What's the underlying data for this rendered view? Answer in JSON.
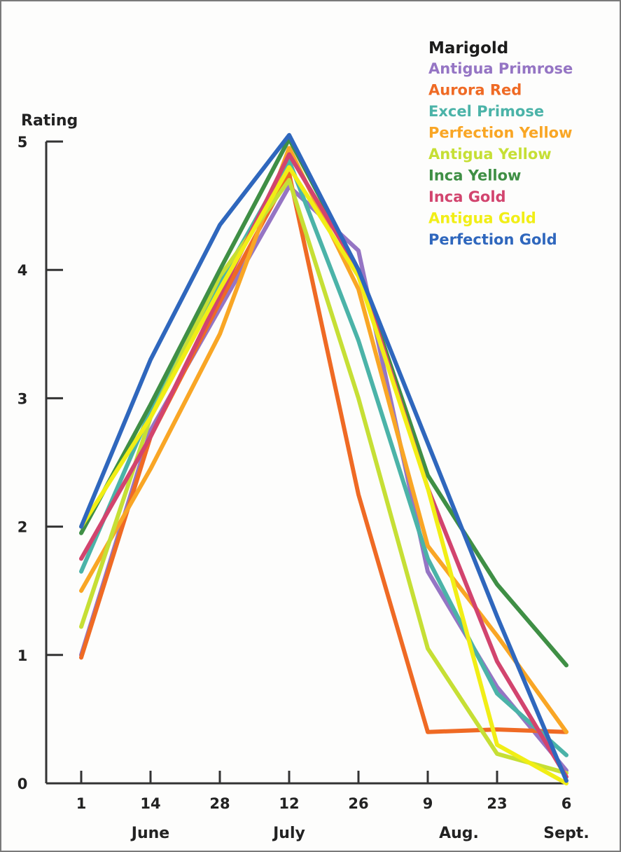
{
  "chart_data": {
    "type": "line",
    "ylabel": "Rating",
    "xlabel": "",
    "ylim": [
      0,
      5
    ],
    "y_ticks": [
      0,
      1,
      2,
      3,
      4,
      5
    ],
    "x_tick_labels": [
      "1",
      "14",
      "28",
      "12",
      "26",
      "9",
      "23",
      "6"
    ],
    "month_labels": [
      {
        "label": "June",
        "at_index": 1
      },
      {
        "label": "July",
        "at_index": 3
      },
      {
        "label": "Aug.",
        "at_index": 5.5
      },
      {
        "label": "Sept.",
        "at_index": 7
      }
    ],
    "legend_title": "Marigold",
    "legend_position": "top-right",
    "grid": false,
    "series": [
      {
        "name": "Antigua Primrose",
        "color": "#9575c4",
        "values": [
          1.0,
          2.75,
          3.7,
          4.65,
          4.15,
          1.65,
          0.75,
          0.1
        ]
      },
      {
        "name": "Aurora Red",
        "color": "#ef6a24",
        "values": [
          0.98,
          2.7,
          3.75,
          4.75,
          2.25,
          0.4,
          0.42,
          0.4
        ]
      },
      {
        "name": "Excel Primose",
        "color": "#4bb3a8",
        "values": [
          1.65,
          2.9,
          3.9,
          4.85,
          3.45,
          1.75,
          0.7,
          0.22
        ]
      },
      {
        "name": "Perfection Yellow",
        "color": "#f9a625",
        "values": [
          1.5,
          2.45,
          3.5,
          4.95,
          3.85,
          1.85,
          1.15,
          0.4
        ]
      },
      {
        "name": "Antigua Yellow",
        "color": "#c6df35",
        "values": [
          1.22,
          2.85,
          3.95,
          4.7,
          3.0,
          1.05,
          0.23,
          0.08
        ]
      },
      {
        "name": "Inca Yellow",
        "color": "#3f8f45",
        "values": [
          1.95,
          2.95,
          4.0,
          5.02,
          4.0,
          2.4,
          1.55,
          0.92
        ]
      },
      {
        "name": "Inca Gold",
        "color": "#d2446e",
        "values": [
          1.75,
          2.7,
          3.8,
          4.9,
          4.0,
          2.3,
          0.95,
          0.05
        ]
      },
      {
        "name": "Antigua Gold",
        "color": "#f1ee16",
        "values": [
          2.0,
          2.85,
          3.85,
          4.8,
          3.95,
          2.3,
          0.3,
          0.0
        ]
      },
      {
        "name": "Perfection Gold",
        "color": "#2f67bd",
        "values": [
          2.0,
          3.3,
          4.35,
          5.05,
          4.0,
          2.65,
          1.3,
          0.02
        ]
      }
    ]
  }
}
